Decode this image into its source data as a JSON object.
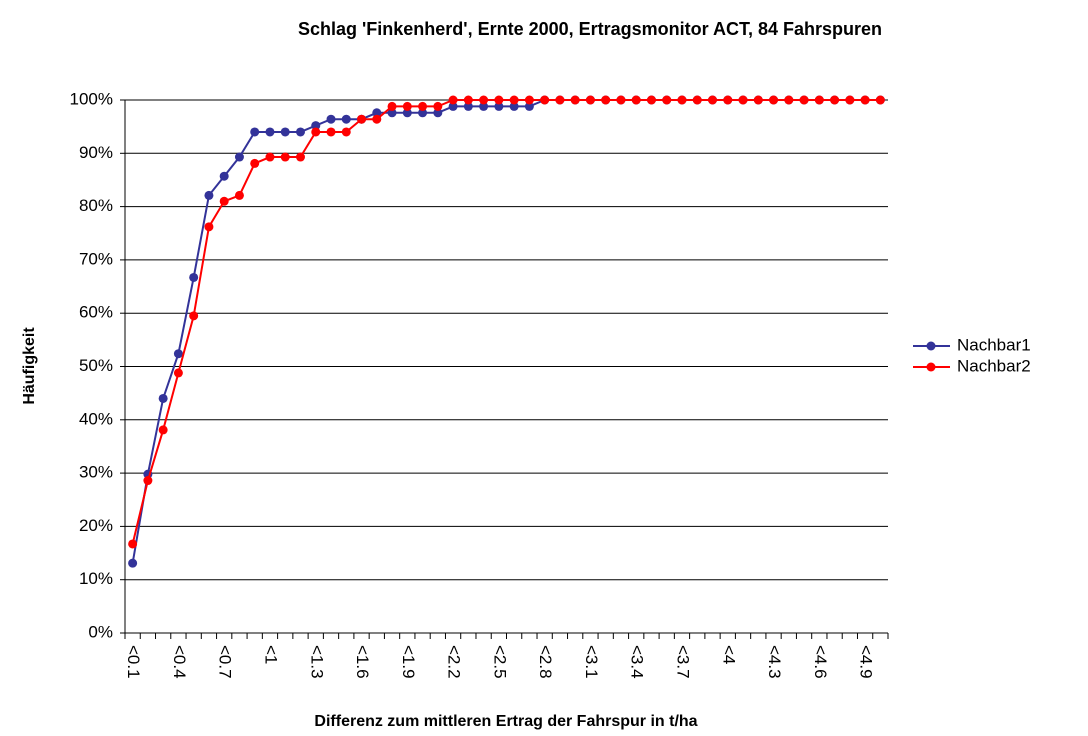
{
  "chart_data": {
    "type": "line",
    "title": "Schlag 'Finkenherd', Ernte 2000, Ertragsmonitor ACT, 84 Fahrspuren",
    "x_label": "Differenz zum mittleren Ertrag der Fahrspur in t/ha",
    "y_label": "Häufigkeit",
    "categories": [
      "<0.1",
      null,
      null,
      "<0.4",
      null,
      null,
      "<0.7",
      null,
      null,
      "<1",
      null,
      null,
      "<1.3",
      null,
      null,
      "<1.6",
      null,
      null,
      "<1.9",
      null,
      null,
      "<2.2",
      null,
      null,
      "<2.5",
      null,
      null,
      "<2.8",
      null,
      null,
      "<3.1",
      null,
      null,
      "<3.4",
      null,
      null,
      "<3.7",
      null,
      null,
      "<4",
      null,
      null,
      "<4.3",
      null,
      null,
      "<4.6",
      null,
      null,
      "<4.9",
      null
    ],
    "series": [
      {
        "name": "Nachbar1",
        "color": "#333399",
        "values": [
          13.1,
          29.8,
          44.0,
          52.4,
          66.7,
          82.1,
          85.7,
          89.3,
          94.0,
          94.0,
          94.0,
          94.0,
          95.2,
          96.4,
          96.4,
          96.4,
          97.6,
          97.6,
          97.6,
          97.6,
          97.6,
          98.8,
          98.8,
          98.8,
          98.8,
          98.8,
          98.8,
          100,
          100,
          100,
          100,
          100,
          100,
          100,
          100,
          100,
          100,
          100,
          100,
          100,
          100,
          100,
          100,
          100,
          100,
          100,
          100,
          100,
          100,
          100
        ]
      },
      {
        "name": "Nachbar2",
        "color": "#ff0000",
        "values": [
          16.7,
          28.6,
          38.1,
          48.8,
          59.5,
          76.2,
          81.0,
          82.1,
          88.1,
          89.3,
          89.3,
          89.3,
          94.0,
          94.0,
          94.0,
          96.4,
          96.4,
          98.8,
          98.8,
          98.8,
          98.8,
          100,
          100,
          100,
          100,
          100,
          100,
          100,
          100,
          100,
          100,
          100,
          100,
          100,
          100,
          100,
          100,
          100,
          100,
          100,
          100,
          100,
          100,
          100,
          100,
          100,
          100,
          100,
          100,
          100
        ]
      }
    ],
    "ylim": [
      0,
      100
    ],
    "yticks": [
      {
        "value": 0,
        "label": "0%"
      },
      {
        "value": 10,
        "label": "10%"
      },
      {
        "value": 20,
        "label": "20%"
      },
      {
        "value": 30,
        "label": "30%"
      },
      {
        "value": 40,
        "label": "40%"
      },
      {
        "value": 50,
        "label": "50%"
      },
      {
        "value": 60,
        "label": "60%"
      },
      {
        "value": 70,
        "label": "70%"
      },
      {
        "value": 80,
        "label": "80%"
      },
      {
        "value": 90,
        "label": "90%"
      },
      {
        "value": 100,
        "label": "100%"
      }
    ],
    "grid": true,
    "legend": "right"
  }
}
